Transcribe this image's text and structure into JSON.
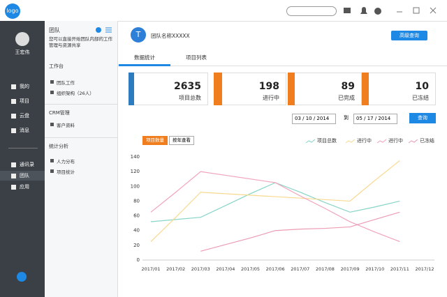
{
  "topbar": {
    "logo": "logo"
  },
  "sidebar": {
    "user": "王宏伟",
    "menu": [
      "我的",
      "项目",
      "云盘",
      "消息"
    ],
    "menu2": [
      "通讯录",
      "团队",
      "应用"
    ]
  },
  "panel": {
    "title": "团队",
    "description": "您可以直接开始团队内部的工作管理与资源共享",
    "sections": [
      {
        "title": "工作台",
        "items": [
          "团队工作",
          "组织架构（26人）"
        ]
      },
      {
        "title": "CRM管理",
        "items": [
          "客户资料"
        ]
      },
      {
        "title": "统计分析",
        "items": [
          "人力分布",
          "项目统计"
        ]
      }
    ]
  },
  "main": {
    "avatar": "T",
    "team_name": "团队名称XXXXX",
    "advanced_button": "高级查询",
    "tabs": [
      "数据统计",
      "项目列表"
    ],
    "stats": [
      {
        "value": 2635,
        "label": "项目总数"
      },
      {
        "value": 198,
        "label": "进行中"
      },
      {
        "value": 89,
        "label": "已完成"
      },
      {
        "value": 10,
        "label": "已冻结"
      }
    ],
    "date_from": "03 / 10 / 2014",
    "date_sep": "到",
    "date_to": "05 / 17 / 2014",
    "query_button": "查询",
    "toggles": [
      "项目数量",
      "按年查看"
    ]
  },
  "chart_data": {
    "type": "line",
    "categories": [
      "2017/01",
      "2017/02",
      "2017/03",
      "2017/04",
      "2017/05",
      "2017/06",
      "2017/07",
      "2017/08",
      "2017/09",
      "2017/10",
      "2017/11",
      "2017/12"
    ],
    "ylim": [
      0,
      140
    ],
    "yticks": [
      0,
      20,
      40,
      60,
      80,
      100,
      120,
      140
    ],
    "grid": false,
    "series": [
      {
        "name": "项目总数",
        "color": "#86d5c8",
        "values": [
          52,
          55,
          58,
          74,
          90,
          105,
          92,
          78,
          65,
          72,
          80,
          null
        ]
      },
      {
        "name": "进行中",
        "color": "#f8d98e",
        "values": [
          25,
          58,
          92,
          90,
          88,
          86,
          84,
          82,
          80,
          108,
          135,
          null
        ]
      },
      {
        "name": "进行中",
        "color": "#f2a2bb",
        "values": [
          65,
          92,
          120,
          115,
          110,
          105,
          87,
          70,
          52,
          38,
          25,
          null
        ]
      },
      {
        "name": "已冻结",
        "color": "#ec9cb3",
        "values": [
          null,
          null,
          12,
          21,
          30,
          40,
          42,
          43,
          45,
          55,
          65,
          null
        ]
      }
    ]
  }
}
